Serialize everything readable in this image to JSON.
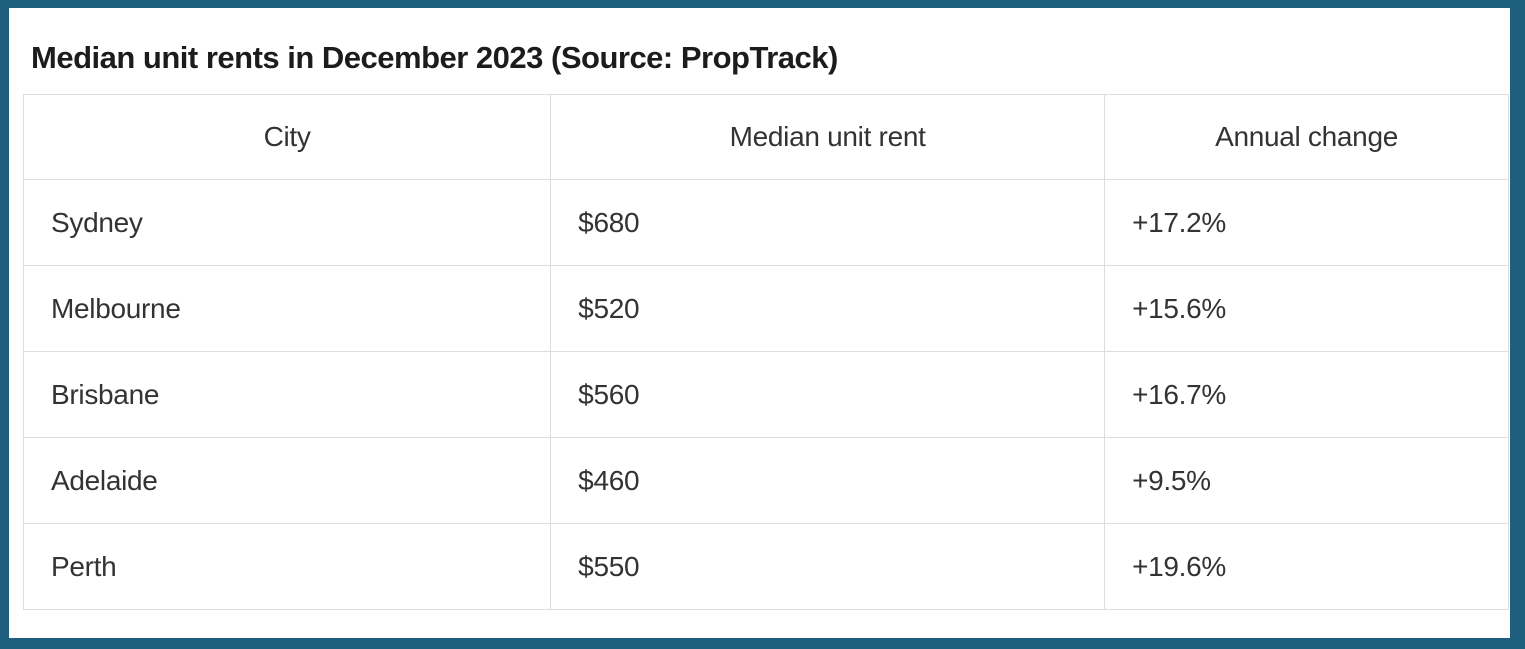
{
  "chart_data": {
    "type": "table",
    "title": "Median unit rents in December 2023 (Source: PropTrack)",
    "columns": [
      "City",
      "Median unit rent",
      "Annual change"
    ],
    "rows": [
      [
        "Sydney",
        "$680",
        "+17.2%"
      ],
      [
        "Melbourne",
        "$520",
        "+15.6%"
      ],
      [
        "Brisbane",
        "$560",
        "+16.7%"
      ],
      [
        "Adelaide",
        "$460",
        "+9.5%"
      ],
      [
        "Perth",
        "$550",
        "+19.6%"
      ]
    ],
    "layout_hints": {
      "header_alignment": "center",
      "cell_alignment": "left",
      "grid": "on"
    }
  },
  "colors": {
    "frame_border": "#1e5f7e",
    "grid_border": "#dddddd",
    "title_text": "#1c1c1c",
    "cell_text": "#333333",
    "background": "#ffffff"
  }
}
